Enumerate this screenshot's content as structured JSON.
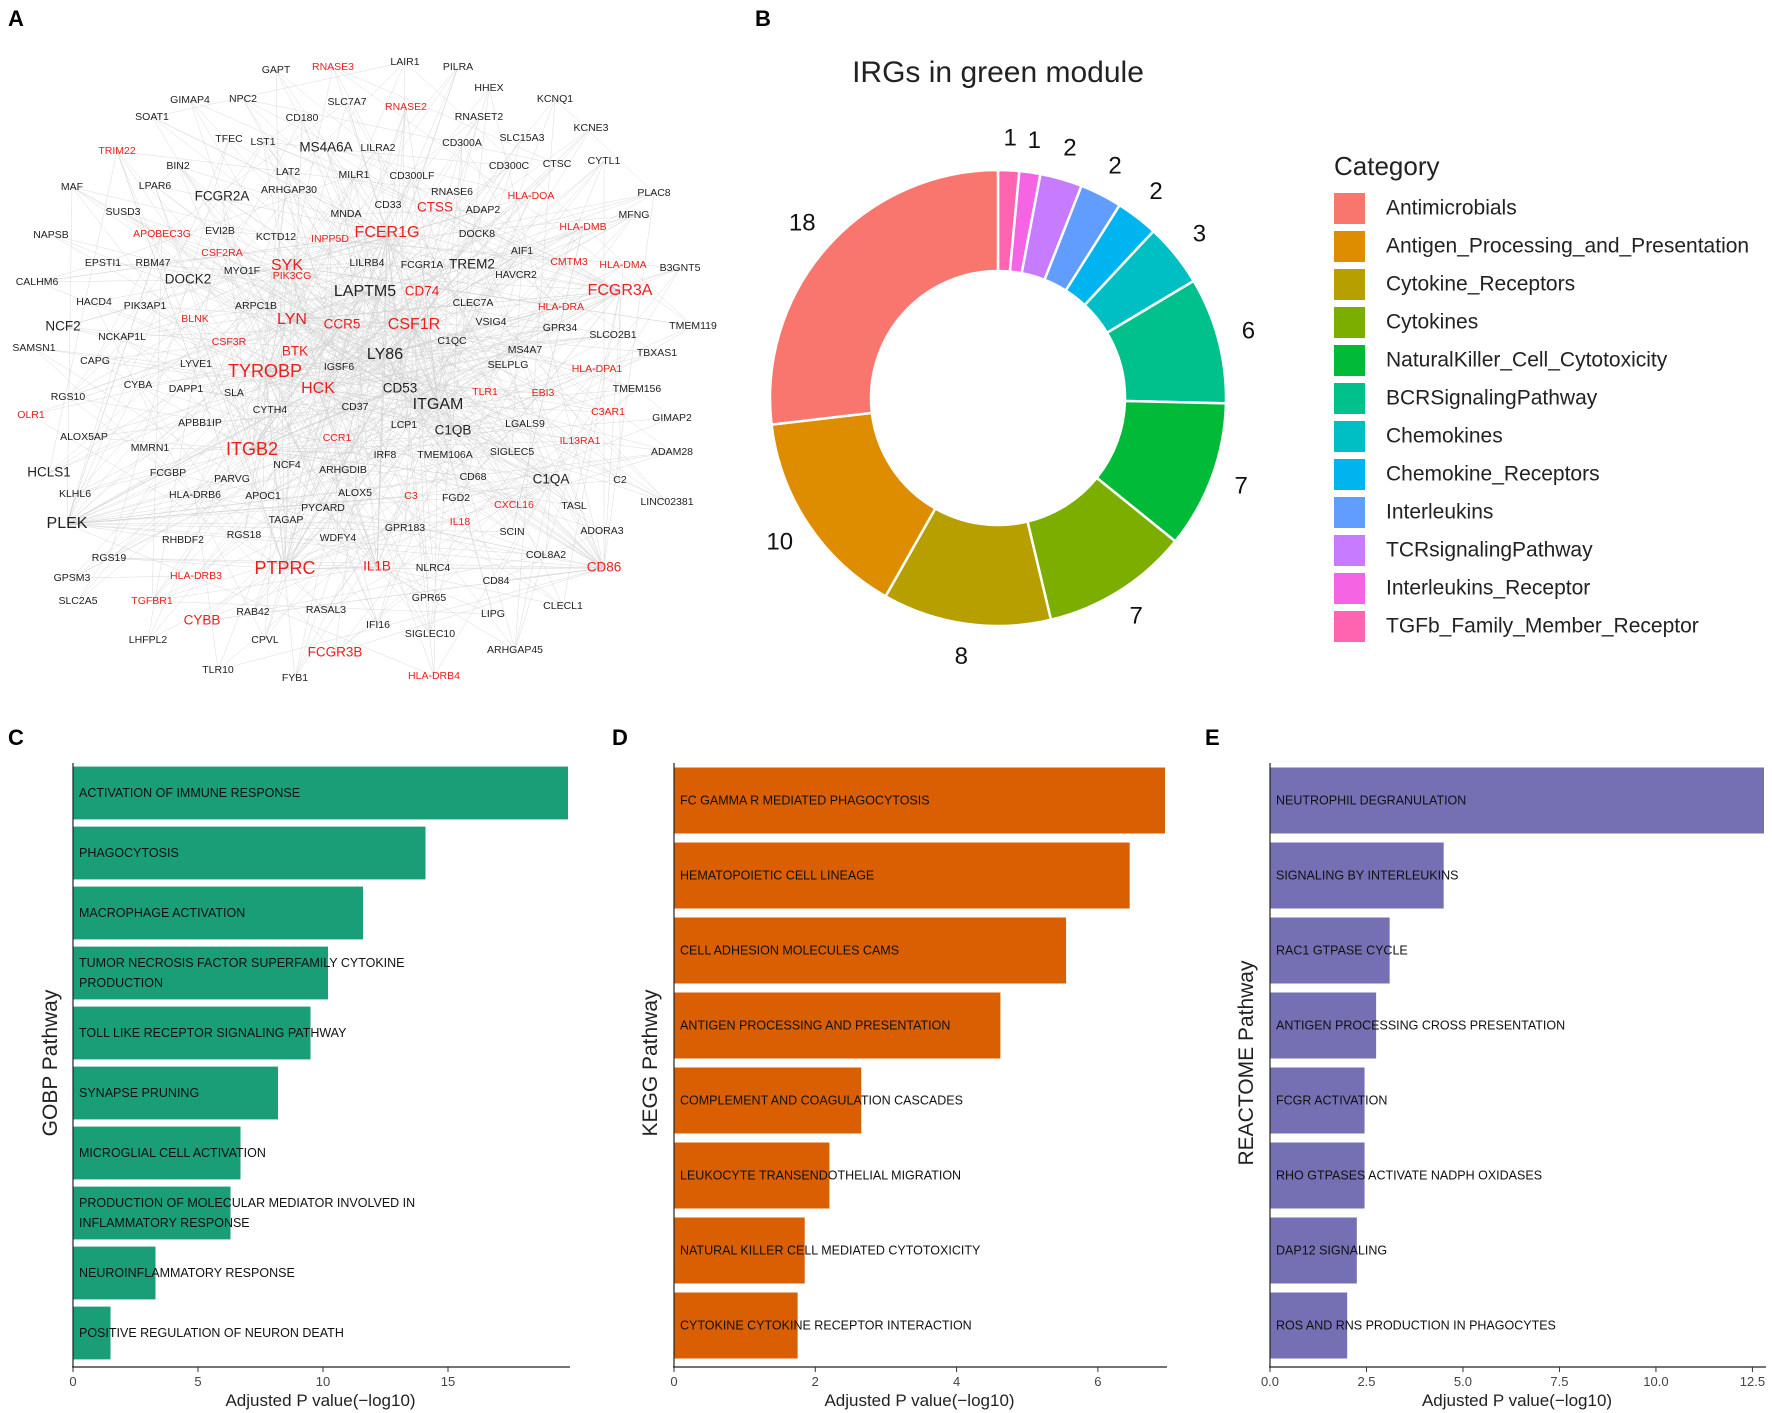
{
  "panel_labels": {
    "a": "A",
    "b": "B",
    "c": "C",
    "d": "D",
    "e": "E"
  },
  "network": {
    "black_color": "#222222",
    "red_color": "#e8201e",
    "nodes": [
      {
        "t": "GAPT",
        "c": "k",
        "s": "s"
      },
      {
        "t": "RNASE3",
        "c": "r",
        "s": "s"
      },
      {
        "t": "LAIR1",
        "c": "k",
        "s": "s"
      },
      {
        "t": "PILRA",
        "c": "k",
        "s": "s"
      },
      {
        "t": "HHEX",
        "c": "k",
        "s": "s"
      },
      {
        "t": "KCNQ1",
        "c": "k",
        "s": "s"
      },
      {
        "t": "GIMAP4",
        "c": "k",
        "s": "s"
      },
      {
        "t": "NPC2",
        "c": "k",
        "s": "s"
      },
      {
        "t": "SLC7A7",
        "c": "k",
        "s": "s"
      },
      {
        "t": "RNASE2",
        "c": "r",
        "s": "s"
      },
      {
        "t": "CD180",
        "c": "k",
        "s": "s"
      },
      {
        "t": "RNASET2",
        "c": "k",
        "s": "s"
      },
      {
        "t": "KCNE3",
        "c": "k",
        "s": "s"
      },
      {
        "t": "SOAT1",
        "c": "k",
        "s": "s"
      },
      {
        "t": "TFEC",
        "c": "k",
        "s": "s"
      },
      {
        "t": "LST1",
        "c": "k",
        "s": "s"
      },
      {
        "t": "MS4A6A",
        "c": "k",
        "s": "m"
      },
      {
        "t": "LILRA2",
        "c": "k",
        "s": "s"
      },
      {
        "t": "CD300A",
        "c": "k",
        "s": "s"
      },
      {
        "t": "SLC15A3",
        "c": "k",
        "s": "s"
      },
      {
        "t": "CYTL1",
        "c": "k",
        "s": "s"
      },
      {
        "t": "TRIM22",
        "c": "r",
        "s": "s"
      },
      {
        "t": "BIN2",
        "c": "k",
        "s": "s"
      },
      {
        "t": "LAT2",
        "c": "k",
        "s": "s"
      },
      {
        "t": "MILR1",
        "c": "k",
        "s": "s"
      },
      {
        "t": "CD300LF",
        "c": "k",
        "s": "s"
      },
      {
        "t": "CD300C",
        "c": "k",
        "s": "s"
      },
      {
        "t": "CTSC",
        "c": "k",
        "s": "s"
      },
      {
        "t": "MAF",
        "c": "k",
        "s": "s"
      },
      {
        "t": "LPAR6",
        "c": "k",
        "s": "s"
      },
      {
        "t": "FCGR2A",
        "c": "k",
        "s": "m"
      },
      {
        "t": "ARHGAP30",
        "c": "k",
        "s": "s"
      },
      {
        "t": "RNASE6",
        "c": "k",
        "s": "s"
      },
      {
        "t": "PLAC8",
        "c": "k",
        "s": "s"
      },
      {
        "t": "SUSD3",
        "c": "k",
        "s": "s"
      },
      {
        "t": "MNDA",
        "c": "k",
        "s": "s"
      },
      {
        "t": "CD33",
        "c": "k",
        "s": "s"
      },
      {
        "t": "CTSS",
        "c": "r",
        "s": "m"
      },
      {
        "t": "HLA-DOA",
        "c": "r",
        "s": "s"
      },
      {
        "t": "ADAP2",
        "c": "k",
        "s": "s"
      },
      {
        "t": "MFNG",
        "c": "k",
        "s": "s"
      },
      {
        "t": "NAPSB",
        "c": "k",
        "s": "s"
      },
      {
        "t": "APOBEC3G",
        "c": "r",
        "s": "s"
      },
      {
        "t": "EVI2B",
        "c": "k",
        "s": "s"
      },
      {
        "t": "KCTD12",
        "c": "k",
        "s": "s"
      },
      {
        "t": "INPP5D",
        "c": "r",
        "s": "s"
      },
      {
        "t": "FCER1G",
        "c": "r",
        "s": "l"
      },
      {
        "t": "DOCK8",
        "c": "k",
        "s": "s"
      },
      {
        "t": "HLA-DMB",
        "c": "r",
        "s": "s"
      },
      {
        "t": "EPSTI1",
        "c": "k",
        "s": "s"
      },
      {
        "t": "RBM47",
        "c": "k",
        "s": "s"
      },
      {
        "t": "CSF2RA",
        "c": "r",
        "s": "s"
      },
      {
        "t": "AIF1",
        "c": "k",
        "s": "s"
      },
      {
        "t": "MYO1F",
        "c": "k",
        "s": "s"
      },
      {
        "t": "SYK",
        "c": "r",
        "s": "l"
      },
      {
        "t": "LILRB4",
        "c": "k",
        "s": "s"
      },
      {
        "t": "FCGR1A",
        "c": "k",
        "s": "s"
      },
      {
        "t": "TREM2",
        "c": "k",
        "s": "m"
      },
      {
        "t": "CMTM3",
        "c": "r",
        "s": "s"
      },
      {
        "t": "HLA-DMA",
        "c": "r",
        "s": "s"
      },
      {
        "t": "B3GNT5",
        "c": "k",
        "s": "s"
      },
      {
        "t": "CALHM6",
        "c": "k",
        "s": "s"
      },
      {
        "t": "DOCK2",
        "c": "k",
        "s": "m"
      },
      {
        "t": "PIK3CG",
        "c": "r",
        "s": "s"
      },
      {
        "t": "HAVCR2",
        "c": "k",
        "s": "s"
      },
      {
        "t": "LAPTM5",
        "c": "k",
        "s": "l"
      },
      {
        "t": "CD74",
        "c": "r",
        "s": "m"
      },
      {
        "t": "FCGR3A",
        "c": "r",
        "s": "l"
      },
      {
        "t": "HACD4",
        "c": "k",
        "s": "s"
      },
      {
        "t": "PIK3AP1",
        "c": "k",
        "s": "s"
      },
      {
        "t": "ARPC1B",
        "c": "k",
        "s": "s"
      },
      {
        "t": "CLEC7A",
        "c": "k",
        "s": "s"
      },
      {
        "t": "TMEM119",
        "c": "k",
        "s": "s"
      },
      {
        "t": "BLNK",
        "c": "r",
        "s": "s"
      },
      {
        "t": "LYN",
        "c": "r",
        "s": "l"
      },
      {
        "t": "CCR5",
        "c": "r",
        "s": "m"
      },
      {
        "t": "CSF1R",
        "c": "r",
        "s": "l"
      },
      {
        "t": "VSIG4",
        "c": "k",
        "s": "s"
      },
      {
        "t": "HLA-DRA",
        "c": "r",
        "s": "s"
      },
      {
        "t": "GPR34",
        "c": "k",
        "s": "s"
      },
      {
        "t": "NCF2",
        "c": "k",
        "s": "m"
      },
      {
        "t": "NCKAP1L",
        "c": "k",
        "s": "s"
      },
      {
        "t": "C1QC",
        "c": "k",
        "s": "s"
      },
      {
        "t": "SLCO2B1",
        "c": "k",
        "s": "s"
      },
      {
        "t": "SAMSN1",
        "c": "k",
        "s": "s"
      },
      {
        "t": "CSF3R",
        "c": "r",
        "s": "s"
      },
      {
        "t": "BTK",
        "c": "r",
        "s": "m"
      },
      {
        "t": "MS4A7",
        "c": "k",
        "s": "s"
      },
      {
        "t": "TBXAS1",
        "c": "k",
        "s": "s"
      },
      {
        "t": "CAPG",
        "c": "k",
        "s": "s"
      },
      {
        "t": "LYVE1",
        "c": "k",
        "s": "s"
      },
      {
        "t": "LY86",
        "c": "k",
        "s": "l"
      },
      {
        "t": "SELPLG",
        "c": "k",
        "s": "s"
      },
      {
        "t": "HLA-DPA1",
        "c": "r",
        "s": "s"
      },
      {
        "t": "TYROBP",
        "c": "r",
        "s": "xl"
      },
      {
        "t": "IGSF6",
        "c": "k",
        "s": "s"
      },
      {
        "t": "CYBA",
        "c": "k",
        "s": "s"
      },
      {
        "t": "DAPP1",
        "c": "k",
        "s": "s"
      },
      {
        "t": "RGS10",
        "c": "k",
        "s": "s"
      },
      {
        "t": "SLA",
        "c": "k",
        "s": "s"
      },
      {
        "t": "HCK",
        "c": "r",
        "s": "l"
      },
      {
        "t": "CD53",
        "c": "k",
        "s": "m"
      },
      {
        "t": "TLR1",
        "c": "r",
        "s": "s"
      },
      {
        "t": "EBI3",
        "c": "r",
        "s": "s"
      },
      {
        "t": "TMEM156",
        "c": "k",
        "s": "s"
      },
      {
        "t": "CYTH4",
        "c": "k",
        "s": "s"
      },
      {
        "t": "CD37",
        "c": "k",
        "s": "s"
      },
      {
        "t": "ITGAM",
        "c": "k",
        "s": "l"
      },
      {
        "t": "C3AR1",
        "c": "r",
        "s": "s"
      },
      {
        "t": "OLR1",
        "c": "r",
        "s": "s"
      },
      {
        "t": "APBB1IP",
        "c": "k",
        "s": "s"
      },
      {
        "t": "GIMAP2",
        "c": "k",
        "s": "s"
      },
      {
        "t": "ALOX5AP",
        "c": "k",
        "s": "s"
      },
      {
        "t": "CCR1",
        "c": "r",
        "s": "s"
      },
      {
        "t": "LCP1",
        "c": "k",
        "s": "s"
      },
      {
        "t": "C1QB",
        "c": "k",
        "s": "m"
      },
      {
        "t": "LGALS9",
        "c": "k",
        "s": "s"
      },
      {
        "t": "IL13RA1",
        "c": "r",
        "s": "s"
      },
      {
        "t": "MMRN1",
        "c": "k",
        "s": "s"
      },
      {
        "t": "ITGB2",
        "c": "r",
        "s": "xl"
      },
      {
        "t": "IRF8",
        "c": "k",
        "s": "s"
      },
      {
        "t": "TMEM106A",
        "c": "k",
        "s": "s"
      },
      {
        "t": "ADAM28",
        "c": "k",
        "s": "s"
      },
      {
        "t": "HCLS1",
        "c": "k",
        "s": "m"
      },
      {
        "t": "FCGBP",
        "c": "k",
        "s": "s"
      },
      {
        "t": "PARVG",
        "c": "k",
        "s": "s"
      },
      {
        "t": "NCF4",
        "c": "k",
        "s": "s"
      },
      {
        "t": "ARHGDIB",
        "c": "k",
        "s": "s"
      },
      {
        "t": "SIGLEC5",
        "c": "k",
        "s": "s"
      },
      {
        "t": "CD68",
        "c": "k",
        "s": "s"
      },
      {
        "t": "C1QA",
        "c": "k",
        "s": "m"
      },
      {
        "t": "C2",
        "c": "k",
        "s": "s"
      },
      {
        "t": "KLHL6",
        "c": "k",
        "s": "s"
      },
      {
        "t": "HLA-DRB6",
        "c": "k",
        "s": "s"
      },
      {
        "t": "APOC1",
        "c": "k",
        "s": "s"
      },
      {
        "t": "ALOX5",
        "c": "k",
        "s": "s"
      },
      {
        "t": "C3",
        "c": "r",
        "s": "s"
      },
      {
        "t": "FGD2",
        "c": "k",
        "s": "s"
      },
      {
        "t": "CXCL16",
        "c": "r",
        "s": "s"
      },
      {
        "t": "TASL",
        "c": "k",
        "s": "s"
      },
      {
        "t": "LINC02381",
        "c": "k",
        "s": "s"
      },
      {
        "t": "PLEK",
        "c": "k",
        "s": "l"
      },
      {
        "t": "PYCARD",
        "c": "k",
        "s": "s"
      },
      {
        "t": "TAGAP",
        "c": "k",
        "s": "s"
      },
      {
        "t": "IL18",
        "c": "r",
        "s": "s"
      },
      {
        "t": "ADORA3",
        "c": "k",
        "s": "s"
      },
      {
        "t": "RHBDF2",
        "c": "k",
        "s": "s"
      },
      {
        "t": "RGS18",
        "c": "k",
        "s": "s"
      },
      {
        "t": "WDFY4",
        "c": "k",
        "s": "s"
      },
      {
        "t": "GPR183",
        "c": "k",
        "s": "s"
      },
      {
        "t": "SCIN",
        "c": "k",
        "s": "s"
      },
      {
        "t": "RGS19",
        "c": "k",
        "s": "s"
      },
      {
        "t": "COL8A2",
        "c": "k",
        "s": "s"
      },
      {
        "t": "GPSM3",
        "c": "k",
        "s": "s"
      },
      {
        "t": "HLA-DRB3",
        "c": "r",
        "s": "s"
      },
      {
        "t": "PTPRC",
        "c": "r",
        "s": "xl"
      },
      {
        "t": "IL1B",
        "c": "r",
        "s": "m"
      },
      {
        "t": "NLRC4",
        "c": "k",
        "s": "s"
      },
      {
        "t": "CD86",
        "c": "r",
        "s": "m"
      },
      {
        "t": "SLC2A5",
        "c": "k",
        "s": "s"
      },
      {
        "t": "TGFBR1",
        "c": "r",
        "s": "s"
      },
      {
        "t": "CD84",
        "c": "k",
        "s": "s"
      },
      {
        "t": "RAB42",
        "c": "k",
        "s": "s"
      },
      {
        "t": "RASAL3",
        "c": "k",
        "s": "s"
      },
      {
        "t": "GPR65",
        "c": "k",
        "s": "s"
      },
      {
        "t": "CYBB",
        "c": "r",
        "s": "m"
      },
      {
        "t": "CLECL1",
        "c": "k",
        "s": "s"
      },
      {
        "t": "IFI16",
        "c": "k",
        "s": "s"
      },
      {
        "t": "LIPG",
        "c": "k",
        "s": "s"
      },
      {
        "t": "LHFPL2",
        "c": "k",
        "s": "s"
      },
      {
        "t": "CPVL",
        "c": "k",
        "s": "s"
      },
      {
        "t": "SIGLEC10",
        "c": "k",
        "s": "s"
      },
      {
        "t": "FCGR3B",
        "c": "r",
        "s": "m"
      },
      {
        "t": "ARHGAP45",
        "c": "k",
        "s": "s"
      },
      {
        "t": "TLR10",
        "c": "k",
        "s": "s"
      },
      {
        "t": "FYB1",
        "c": "k",
        "s": "s"
      },
      {
        "t": "HLA-DRB4",
        "c": "r",
        "s": "s"
      }
    ]
  },
  "chart_data": [
    {
      "type": "pie",
      "title": "IRGs in green module",
      "legend_title": "Category",
      "categories": [
        "Antimicrobials",
        "Antigen_Processing_and_Presentation",
        "Cytokine_Receptors",
        "Cytokines",
        "NaturalKiller_Cell_Cytotoxicity",
        "BCRSignalingPathway",
        "Chemokines",
        "Chemokine_Receptors",
        "Interleukins",
        "TCRsignalingPathway",
        "Interleukins_Receptor",
        "TGFb_Family_Member_Receptor"
      ],
      "values": [
        18,
        10,
        8,
        7,
        7,
        6,
        3,
        2,
        2,
        2,
        1,
        1
      ],
      "labels": [
        "18",
        "10",
        "8",
        "7",
        "7",
        "6",
        "3",
        "2",
        "2",
        "2",
        "1",
        "1"
      ],
      "colors": [
        "#F8766D",
        "#DE8C00",
        "#B79F00",
        "#7CAE00",
        "#00BA38",
        "#00C08B",
        "#00BFC4",
        "#00B4F0",
        "#619CFF",
        "#C77CFF",
        "#F564E3",
        "#FF64B0"
      ]
    },
    {
      "type": "bar",
      "orientation": "horizontal",
      "color": "#1a9e77",
      "ylabel": "GOBP Pathway",
      "xlabel": "Adjusted P value(−log10)",
      "xlim": [
        0,
        19.8
      ],
      "xticks": [
        0,
        5,
        10,
        15
      ],
      "tick_labels": [
        "0",
        "5",
        "10",
        "15"
      ],
      "categories": [
        "ACTIVATION OF IMMUNE RESPONSE",
        "PHAGOCYTOSIS",
        "MACROPHAGE ACTIVATION",
        "TUMOR NECROSIS FACTOR SUPERFAMILY CYTOKINE PRODUCTION",
        "TOLL LIKE RECEPTOR SIGNALING PATHWAY",
        "SYNAPSE PRUNING",
        "MICROGLIAL CELL ACTIVATION",
        "PRODUCTION OF MOLECULAR MEDIATOR INVOLVED IN INFLAMMATORY RESPONSE",
        "NEUROINFLAMMATORY RESPONSE",
        "POSITIVE REGULATION OF NEURON DEATH"
      ],
      "values": [
        19.8,
        14.1,
        11.6,
        10.2,
        9.5,
        8.2,
        6.7,
        6.3,
        3.3,
        1.5
      ]
    },
    {
      "type": "bar",
      "orientation": "horizontal",
      "color": "#d95f02",
      "ylabel": "KEGG Pathway",
      "xlabel": "Adjusted P value(−log10)",
      "xlim": [
        0,
        6.95
      ],
      "xticks": [
        0,
        2,
        4,
        6
      ],
      "tick_labels": [
        "0",
        "2",
        "4",
        "6"
      ],
      "categories": [
        "FC GAMMA R MEDIATED PHAGOCYTOSIS",
        "HEMATOPOIETIC CELL LINEAGE",
        "CELL ADHESION MOLECULES CAMS",
        "ANTIGEN PROCESSING AND PRESENTATION",
        "COMPLEMENT AND COAGULATION CASCADES",
        "LEUKOCYTE TRANSENDOTHELIAL MIGRATION",
        "NATURAL KILLER CELL MEDIATED CYTOTOXICITY",
        "CYTOKINE CYTOKINE RECEPTOR INTERACTION"
      ],
      "values": [
        6.95,
        6.45,
        5.55,
        4.62,
        2.65,
        2.2,
        1.85,
        1.75
      ]
    },
    {
      "type": "bar",
      "orientation": "horizontal",
      "color": "#7570b3",
      "ylabel": "REACTOME Pathway",
      "xlabel": "Adjusted P value(−log10)",
      "xlim": [
        0,
        12.8
      ],
      "xticks": [
        0,
        2.5,
        5,
        7.5,
        10,
        12.5
      ],
      "tick_labels": [
        "0.0",
        "2.5",
        "5.0",
        "7.5",
        "10.0",
        "12.5"
      ],
      "categories": [
        "NEUTROPHIL DEGRANULATION",
        "SIGNALING BY INTERLEUKINS",
        "RAC1 GTPASE CYCLE",
        "ANTIGEN PROCESSING CROSS PRESENTATION",
        "FCGR ACTIVATION",
        "RHO GTPASES ACTIVATE NADPH OXIDASES",
        "DAP12 SIGNALING",
        "ROS AND RNS PRODUCTION IN PHAGOCYTES"
      ],
      "values": [
        12.8,
        4.5,
        3.1,
        2.75,
        2.45,
        2.45,
        2.25,
        2.0
      ]
    }
  ]
}
